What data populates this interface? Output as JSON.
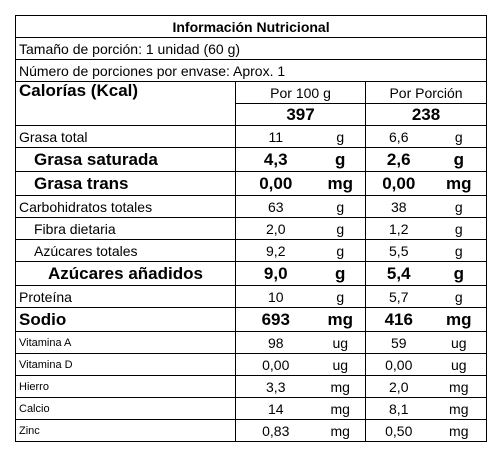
{
  "title": "Información Nutricional",
  "serving_size": "Tamaño de porción: 1 unidad (60 g)",
  "servings_per_container": "Número de porciones por envase: Aprox. 1",
  "header": {
    "label": "Calorías (Kcal)",
    "per_100g": "Por 100 g",
    "per_portion": "Por Porción"
  },
  "calories": {
    "per_100g": "397",
    "per_portion": "238"
  },
  "rows": [
    [
      "Grasa total",
      "11",
      "g",
      "6,6",
      "g"
    ],
    [
      "Grasa saturada",
      "4,3",
      "g",
      "2,6",
      "g"
    ],
    [
      "Grasa trans",
      "0,00",
      "mg",
      "0,00",
      "mg"
    ],
    [
      "Carbohidratos totales",
      "63",
      "g",
      "38",
      "g"
    ],
    [
      "Fibra dietaria",
      "2,0",
      "g",
      "1,2",
      "g"
    ],
    [
      "Azúcares totales",
      "9,2",
      "g",
      "5,5",
      "g"
    ],
    [
      "Azúcares añadidos",
      "9,0",
      "g",
      "5,4",
      "g"
    ],
    [
      "Proteína",
      "10",
      "g",
      "5,7",
      "g"
    ],
    [
      "Sodio",
      "693",
      "mg",
      "416",
      "mg"
    ],
    [
      "Vitamina A",
      "98",
      "ug",
      "59",
      "ug"
    ],
    [
      "Vitamina D",
      "0,00",
      "ug",
      "0,00",
      "ug"
    ],
    [
      "Hierro",
      "3,3",
      "mg",
      "2,0",
      "mg"
    ],
    [
      "Calcio",
      "14",
      "mg",
      "8,1",
      "mg"
    ],
    [
      "Zinc",
      "0,83",
      "mg",
      "0,50",
      "mg"
    ]
  ]
}
